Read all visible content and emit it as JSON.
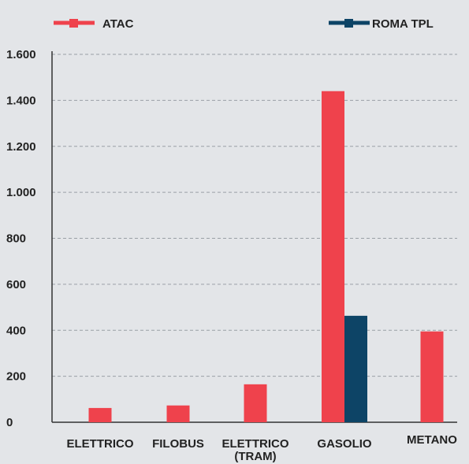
{
  "chart_data": {
    "type": "bar",
    "title": "",
    "xlabel": "",
    "ylabel": "",
    "categories": [
      [
        "ELETTRICO"
      ],
      [
        "FILOBUS"
      ],
      [
        "ELETTRICO",
        "(TRAM)"
      ],
      [
        "GASOLIO"
      ],
      [
        "METANO"
      ]
    ],
    "series": [
      {
        "name": "ATAC",
        "color": "#ef424c",
        "values": [
          62,
          73,
          165,
          1440,
          395
        ]
      },
      {
        "name": "ROMA TPL",
        "color": "#0d4466",
        "values": [
          0,
          0,
          0,
          463,
          0
        ]
      }
    ],
    "ylim": [
      0,
      1600
    ],
    "yticks": [
      0,
      200,
      400,
      600,
      800,
      1000,
      1200,
      1400,
      1600
    ],
    "ytick_labels": [
      "0",
      "200",
      "400",
      "600",
      "800",
      "1.000",
      "1.200",
      "1.400",
      "1.600"
    ],
    "grid": true,
    "grid_style": "dashed",
    "legend_position": "top"
  }
}
